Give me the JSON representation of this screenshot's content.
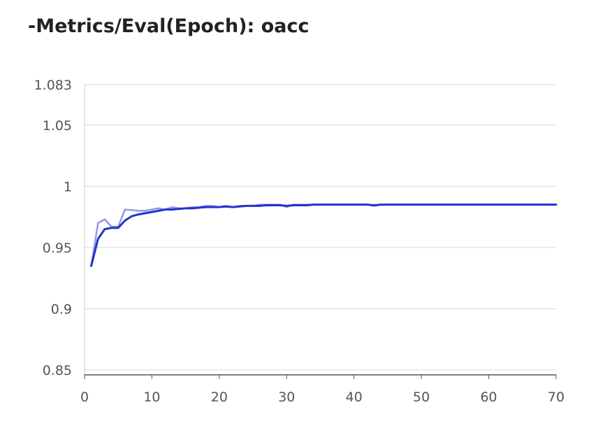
{
  "chart_data": {
    "type": "line",
    "title": "-Metrics/Eval(Epoch): oacc",
    "xlabel": "",
    "ylabel": "",
    "xlim": [
      0,
      70
    ],
    "ylim": [
      0.846,
      1.083
    ],
    "x_ticks": [
      "0",
      "10",
      "20",
      "30",
      "40",
      "50",
      "60",
      "70"
    ],
    "y_ticks": [
      "1.083",
      "1.05",
      "1",
      "0.95",
      "0.9",
      "0.85"
    ],
    "grid": true,
    "colors": {
      "raw": "#9199e6",
      "smoothed": "#2233cc"
    },
    "series": [
      {
        "x": [
          1,
          2,
          3,
          4,
          5,
          6,
          7,
          8,
          9,
          10,
          11,
          12,
          13,
          14,
          15,
          16,
          17,
          18,
          19,
          20,
          21,
          22,
          23,
          24,
          25,
          26,
          27,
          28,
          29,
          30,
          31,
          32,
          33,
          34,
          35,
          36,
          37,
          38,
          39,
          40,
          41,
          42,
          43,
          44,
          45,
          46,
          47,
          48,
          49,
          50,
          55,
          60,
          65,
          70
        ],
        "values": [
          0.935,
          0.97,
          0.973,
          0.967,
          0.967,
          0.981,
          0.9805,
          0.98,
          0.98,
          0.981,
          0.982,
          0.981,
          0.983,
          0.982,
          0.982,
          0.983,
          0.983,
          0.984,
          0.984,
          0.983,
          0.984,
          0.983,
          0.984,
          0.984,
          0.984,
          0.985,
          0.985,
          0.985,
          0.985,
          0.983,
          0.985,
          0.985,
          0.985,
          0.985,
          0.985,
          0.985,
          0.985,
          0.985,
          0.985,
          0.985,
          0.985,
          0.985,
          0.984,
          0.985,
          0.985,
          0.985,
          0.985,
          0.985,
          0.985,
          0.985,
          0.985,
          0.985,
          0.985,
          0.985
        ]
      },
      {
        "x": [
          1,
          2,
          3,
          4,
          5,
          6,
          7,
          8,
          9,
          10,
          11,
          12,
          13,
          14,
          15,
          16,
          17,
          18,
          19,
          20,
          21,
          22,
          23,
          24,
          25,
          26,
          27,
          28,
          29,
          30,
          31,
          32,
          33,
          34,
          35,
          36,
          37,
          38,
          39,
          40,
          41,
          42,
          43,
          44,
          45,
          46,
          47,
          48,
          49,
          50,
          55,
          60,
          65,
          70
        ],
        "values": [
          0.935,
          0.957,
          0.965,
          0.966,
          0.966,
          0.972,
          0.9755,
          0.977,
          0.978,
          0.979,
          0.98,
          0.981,
          0.981,
          0.9815,
          0.982,
          0.982,
          0.9825,
          0.983,
          0.983,
          0.983,
          0.9835,
          0.983,
          0.9835,
          0.984,
          0.984,
          0.984,
          0.9845,
          0.9845,
          0.9845,
          0.984,
          0.9845,
          0.9845,
          0.9845,
          0.985,
          0.985,
          0.985,
          0.985,
          0.985,
          0.985,
          0.985,
          0.985,
          0.985,
          0.9845,
          0.985,
          0.985,
          0.985,
          0.985,
          0.985,
          0.985,
          0.985,
          0.985,
          0.985,
          0.985,
          0.985
        ]
      }
    ]
  }
}
